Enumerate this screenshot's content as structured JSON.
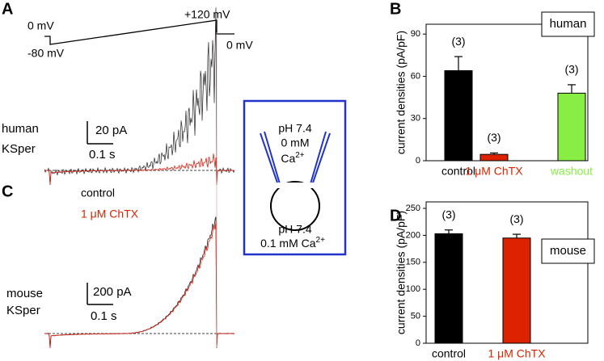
{
  "panels": {
    "a": "A",
    "b": "B",
    "c": "C",
    "d": "D"
  },
  "protocol": {
    "holding": "0 mV",
    "step": "-80 mV",
    "ramp_end": "+120 mV",
    "return": "0 mV"
  },
  "trace_human": {
    "species": "human",
    "channel": "KSper",
    "scale_current": "20 pA",
    "scale_time": "0.1 s"
  },
  "legend": {
    "control": "control",
    "chtx": "1 μM ChTX"
  },
  "trace_mouse": {
    "species": "mouse",
    "channel": "KSper",
    "scale_current": "200 pA",
    "scale_time": "0.1 s"
  },
  "solutions": {
    "pipette_ph": "pH 7.4",
    "pipette_ca": "0 mM",
    "pipette_ion": "Ca",
    "pipette_charge": "2+",
    "bath_ph": "pH 7.4",
    "bath_ca": "0.1 mM Ca",
    "bath_charge": "2+"
  },
  "chart_data": [
    {
      "type": "bar",
      "label_box": "human",
      "ylabel": "current densities (pA/pF)",
      "categories": [
        "control",
        "1 μM ChTX",
        "washout"
      ],
      "values": [
        64,
        4.5,
        48
      ],
      "errors": [
        10,
        1,
        6
      ],
      "colors": [
        "#000000",
        "#dd2200",
        "#88ee44"
      ],
      "n_labels": [
        "(3)",
        "(3)",
        "(3)"
      ],
      "ylim": [
        0,
        97
      ],
      "yticks": [
        0,
        30,
        60,
        90
      ]
    },
    {
      "type": "bar",
      "label_box": "mouse",
      "ylabel": "current densities (pA/pF)",
      "categories": [
        "control",
        "1 μM ChTX"
      ],
      "values": [
        203,
        195
      ],
      "errors": [
        7,
        7
      ],
      "colors": [
        "#000000",
        "#dd2200"
      ],
      "n_labels": [
        "(3)",
        "(3)"
      ],
      "ylim": [
        0,
        262
      ],
      "yticks": [
        0,
        50,
        100,
        150,
        200,
        250
      ]
    }
  ]
}
